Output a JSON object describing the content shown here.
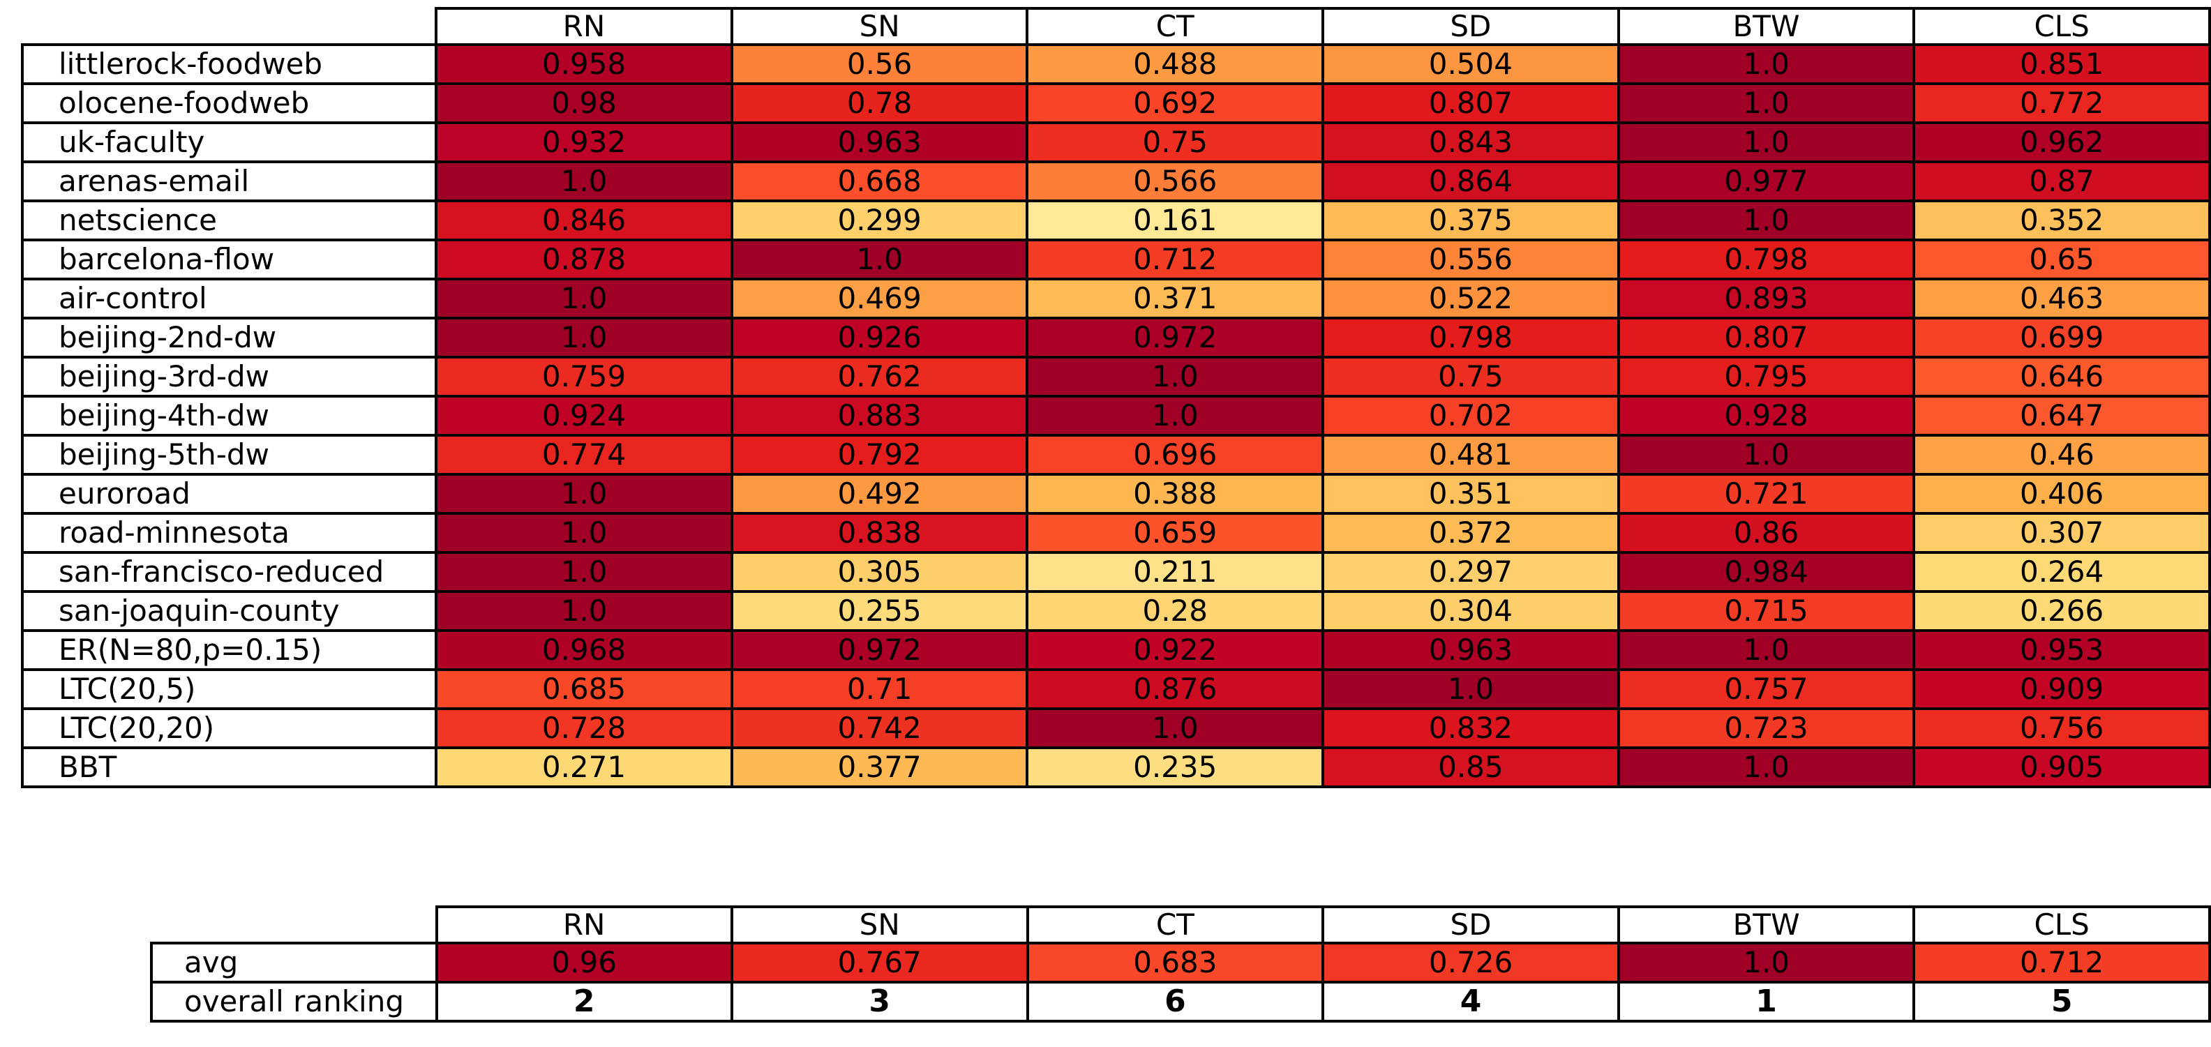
{
  "chart_data": [
    {
      "type": "heatmap",
      "title": "",
      "columns": [
        "RN",
        "SN",
        "CT",
        "SD",
        "BTW",
        "CLS"
      ],
      "rows": [
        "littlerock-foodweb",
        "olocene-foodweb",
        "uk-faculty",
        "arenas-email",
        "netscience",
        "barcelona-flow",
        "air-control",
        "beijing-2nd-dw",
        "beijing-3rd-dw",
        "beijing-4th-dw",
        "beijing-5th-dw",
        "euroroad",
        "road-minnesota",
        "san-francisco-reduced",
        "san-joaquin-county",
        "ER(N=80,p=0.15)",
        "LTC(20,5)",
        "LTC(20,20)",
        "BBT"
      ],
      "values": [
        [
          "0.958",
          "0.56",
          "0.488",
          "0.504",
          "1.0",
          "0.851"
        ],
        [
          "0.98",
          "0.78",
          "0.692",
          "0.807",
          "1.0",
          "0.772"
        ],
        [
          "0.932",
          "0.963",
          "0.75",
          "0.843",
          "1.0",
          "0.962"
        ],
        [
          "1.0",
          "0.668",
          "0.566",
          "0.864",
          "0.977",
          "0.87"
        ],
        [
          "0.846",
          "0.299",
          "0.161",
          "0.375",
          "1.0",
          "0.352"
        ],
        [
          "0.878",
          "1.0",
          "0.712",
          "0.556",
          "0.798",
          "0.65"
        ],
        [
          "1.0",
          "0.469",
          "0.371",
          "0.522",
          "0.893",
          "0.463"
        ],
        [
          "1.0",
          "0.926",
          "0.972",
          "0.798",
          "0.807",
          "0.699"
        ],
        [
          "0.759",
          "0.762",
          "1.0",
          "0.75",
          "0.795",
          "0.646"
        ],
        [
          "0.924",
          "0.883",
          "1.0",
          "0.702",
          "0.928",
          "0.647"
        ],
        [
          "0.774",
          "0.792",
          "0.696",
          "0.481",
          "1.0",
          "0.46"
        ],
        [
          "1.0",
          "0.492",
          "0.388",
          "0.351",
          "0.721",
          "0.406"
        ],
        [
          "1.0",
          "0.838",
          "0.659",
          "0.372",
          "0.86",
          "0.307"
        ],
        [
          "1.0",
          "0.305",
          "0.211",
          "0.297",
          "0.984",
          "0.264"
        ],
        [
          "1.0",
          "0.255",
          "0.28",
          "0.304",
          "0.715",
          "0.266"
        ],
        [
          "0.968",
          "0.972",
          "0.922",
          "0.963",
          "1.0",
          "0.953"
        ],
        [
          "0.685",
          "0.71",
          "0.876",
          "1.0",
          "0.757",
          "0.909"
        ],
        [
          "0.728",
          "0.742",
          "1.0",
          "0.832",
          "0.723",
          "0.756"
        ],
        [
          "0.271",
          "0.377",
          "0.235",
          "0.85",
          "1.0",
          "0.905"
        ]
      ],
      "value_range": [
        0.161,
        1.0
      ],
      "grid": true,
      "colormap": {
        "name": "YlOrRd",
        "stops": [
          "#ffffcc",
          "#ffeda0",
          "#fed976",
          "#feb24c",
          "#fd8d3c",
          "#fc4e2a",
          "#e31a1c",
          "#bd0026",
          "#800026"
        ],
        "vmin": 0,
        "vmax": 1.07,
        "text_color": "#000000",
        "border_color": "#000000",
        "header_background": "#ffffff"
      }
    },
    {
      "type": "heatmap",
      "title": "",
      "columns": [
        "RN",
        "SN",
        "CT",
        "SD",
        "BTW",
        "CLS"
      ],
      "rows": [
        "avg",
        "overall ranking"
      ],
      "values": [
        [
          "0.96",
          "0.767",
          "0.683",
          "0.726",
          "1.0",
          "0.712"
        ],
        [
          "2",
          "3",
          "6",
          "4",
          "1",
          "5"
        ]
      ],
      "colored_rows": [
        true,
        false
      ],
      "bold_rows": [
        false,
        true
      ],
      "grid": true
    }
  ]
}
